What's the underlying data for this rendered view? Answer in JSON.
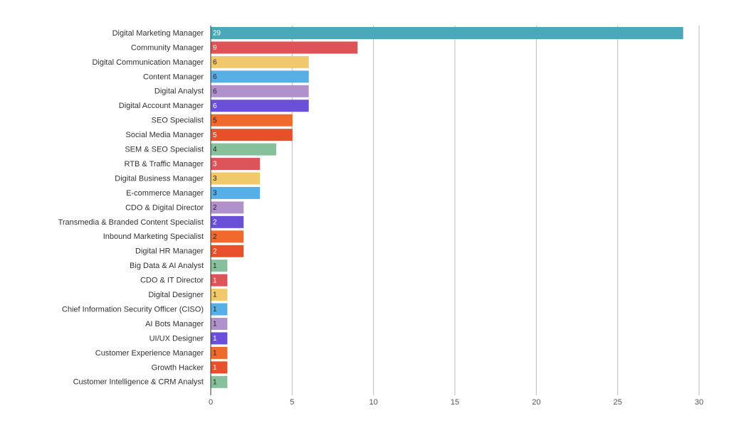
{
  "chart_data": {
    "type": "bar",
    "orientation": "horizontal",
    "title": "",
    "xlabel": "",
    "ylabel": "",
    "xlim": [
      0,
      30
    ],
    "x_ticks": [
      "0",
      "5",
      "10",
      "15",
      "20",
      "25",
      "30"
    ],
    "grid": true,
    "categories": [
      "Digital Marketing Manager",
      "Community Manager",
      "Digital Communication Manager",
      "Content Manager",
      "Digital Analyst",
      "Digital Account Manager",
      "SEO Specialist",
      "Social Media Manager",
      "SEM & SEO Specialist",
      "RTB & Traffic Manager",
      "Digital Business Manager",
      "E-commerce Manager",
      "CDO & Digital Director",
      "Transmedia & Branded Content Specialist",
      "Inbound Marketing Specialist",
      "Digital HR Manager",
      "Big Data & AI Analyst",
      "CDO & IT Director",
      "Digital Designer",
      "Chief Information Security Officer (CISO)",
      "AI Bots Manager",
      "UI/UX Designer",
      "Customer Experience Manager",
      "Growth Hacker",
      "Customer Intelligence & CRM Analyst"
    ],
    "values": [
      29,
      9,
      6,
      6,
      6,
      6,
      5,
      5,
      4,
      3,
      3,
      3,
      2,
      2,
      2,
      2,
      1,
      1,
      1,
      1,
      1,
      1,
      1,
      1,
      1
    ],
    "value_labels": [
      "29",
      "9",
      "6",
      "6",
      "6",
      "6",
      "5",
      "5",
      "4",
      "3",
      "3",
      "3",
      "2",
      "2",
      "2",
      "2",
      "1",
      "1",
      "1",
      "1",
      "1",
      "1",
      "1",
      "1",
      "1"
    ],
    "colors": [
      "#4aa9b9",
      "#dd5357",
      "#f2c96a",
      "#56b0e6",
      "#b191cc",
      "#6a50d8",
      "#ef6a2c",
      "#e8502c",
      "#86c19c",
      "#dd5357",
      "#f2c96a",
      "#56b0e6",
      "#b191cc",
      "#6a50d8",
      "#ef6a2c",
      "#e8502c",
      "#86c19c",
      "#dd5357",
      "#f2c96a",
      "#56b0e6",
      "#b191cc",
      "#6a50d8",
      "#ef6a2c",
      "#e8502c",
      "#86c19c"
    ],
    "label_colors": [
      "#ffffff",
      "#ffffff",
      "#222222",
      "#222222",
      "#222222",
      "#ffffff",
      "#222222",
      "#ffffff",
      "#222222",
      "#ffffff",
      "#222222",
      "#222222",
      "#222222",
      "#ffffff",
      "#222222",
      "#ffffff",
      "#222222",
      "#ffffff",
      "#222222",
      "#222222",
      "#222222",
      "#ffffff",
      "#222222",
      "#ffffff",
      "#222222"
    ]
  }
}
